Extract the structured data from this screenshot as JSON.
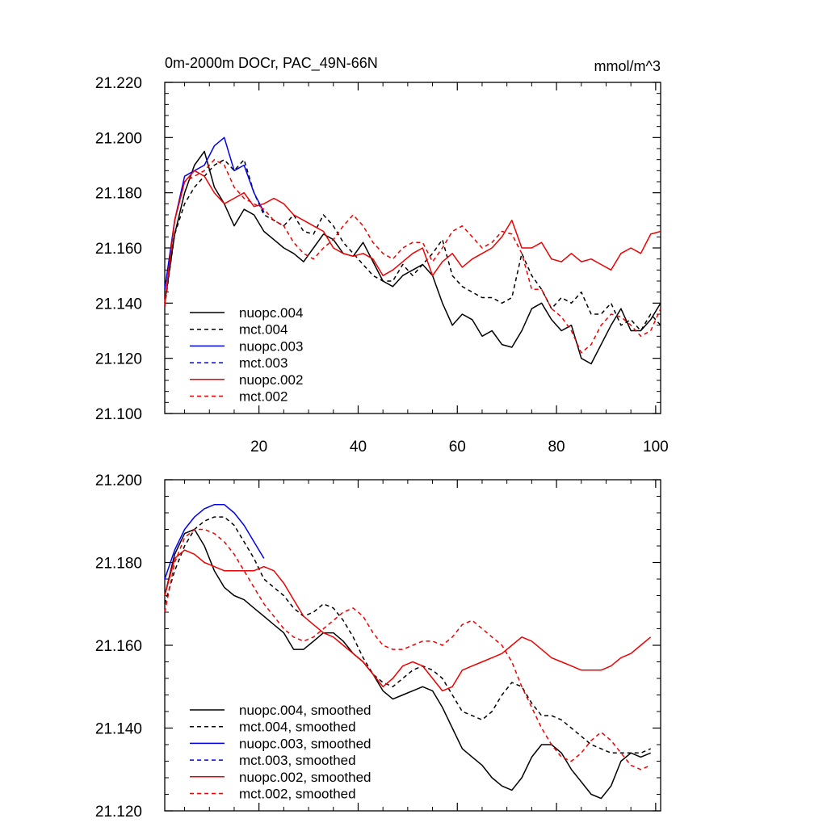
{
  "chart_data": [
    {
      "type": "line",
      "title": "0m-2000m DOCr, PAC_49N-66N",
      "units": "mmol/m^3",
      "xlim": [
        1,
        101
      ],
      "ylim": [
        21.1,
        21.22
      ],
      "xticks": [
        20,
        40,
        60,
        80,
        100
      ],
      "xtick_labels": [
        "20",
        "40",
        "60",
        "80",
        "100"
      ],
      "yticks": [
        21.1,
        21.12,
        21.14,
        21.16,
        21.18,
        21.2,
        21.22
      ],
      "ytick_labels": [
        "21.100",
        "21.120",
        "21.140",
        "21.160",
        "21.180",
        "21.200",
        "21.220"
      ],
      "legend_position": "bottom-left",
      "series": [
        {
          "name": "nuopc.004",
          "color": "#000000",
          "dash": "solid",
          "x": [
            1,
            3,
            5,
            7,
            9,
            11,
            13,
            15,
            17,
            19,
            21,
            23,
            25,
            27,
            29,
            31,
            33,
            35,
            37,
            39,
            41,
            43,
            45,
            47,
            49,
            51,
            53,
            55,
            57,
            59,
            61,
            63,
            65,
            67,
            69,
            71,
            73,
            75,
            77,
            79,
            81,
            83,
            85,
            87,
            89,
            91,
            93,
            95,
            97,
            99,
            101
          ],
          "values": [
            21.14,
            21.165,
            21.18,
            21.19,
            21.195,
            21.182,
            21.176,
            21.168,
            21.174,
            21.172,
            21.166,
            21.163,
            21.16,
            21.158,
            21.155,
            21.16,
            21.165,
            21.163,
            21.158,
            21.157,
            21.162,
            21.155,
            21.148,
            21.146,
            21.15,
            21.152,
            21.154,
            21.15,
            21.14,
            21.132,
            21.136,
            21.134,
            21.128,
            21.13,
            21.125,
            21.124,
            21.13,
            21.138,
            21.14,
            21.134,
            21.13,
            21.132,
            21.12,
            21.118,
            21.125,
            21.132,
            21.138,
            21.13,
            21.13,
            21.134,
            21.14
          ]
        },
        {
          "name": "mct.004",
          "color": "#000000",
          "dash": "dashed",
          "x": [
            1,
            3,
            5,
            7,
            9,
            11,
            13,
            15,
            17,
            19,
            21,
            23,
            25,
            27,
            29,
            31,
            33,
            35,
            37,
            39,
            41,
            43,
            45,
            47,
            49,
            51,
            53,
            55,
            57,
            59,
            61,
            63,
            65,
            67,
            69,
            71,
            73,
            75,
            77,
            79,
            81,
            83,
            85,
            87,
            89,
            91,
            93,
            95,
            97,
            99,
            101
          ],
          "values": [
            21.139,
            21.165,
            21.176,
            21.182,
            21.186,
            21.19,
            21.192,
            21.188,
            21.192,
            21.18,
            21.172,
            21.17,
            21.168,
            21.172,
            21.166,
            21.165,
            21.172,
            21.168,
            21.162,
            21.158,
            21.154,
            21.15,
            21.148,
            21.148,
            21.154,
            21.15,
            21.154,
            21.158,
            21.163,
            21.15,
            21.146,
            21.144,
            21.142,
            21.142,
            21.14,
            21.142,
            21.158,
            21.15,
            21.145,
            21.138,
            21.142,
            21.14,
            21.144,
            21.136,
            21.136,
            21.14,
            21.132,
            21.134,
            21.13,
            21.136,
            21.132
          ]
        },
        {
          "name": "nuopc.003",
          "color": "#0000ee",
          "dash": "solid",
          "x": [
            1,
            3,
            5,
            7,
            9,
            11,
            13,
            15,
            17,
            19,
            21
          ],
          "values": [
            21.145,
            21.17,
            21.186,
            21.188,
            21.19,
            21.197,
            21.2,
            21.188,
            21.19,
            21.18,
            21.173
          ]
        },
        {
          "name": "mct.003",
          "color": "#0000ee",
          "dash": "dashed",
          "x": [],
          "values": []
        },
        {
          "name": "nuopc.002",
          "color": "#ee0000",
          "dash": "solid",
          "x": [
            1,
            3,
            5,
            7,
            9,
            11,
            13,
            15,
            17,
            19,
            21,
            23,
            25,
            27,
            29,
            31,
            33,
            35,
            37,
            39,
            41,
            43,
            45,
            47,
            49,
            51,
            53,
            55,
            57,
            59,
            61,
            63,
            65,
            67,
            69,
            71,
            73,
            75,
            77,
            79,
            81,
            83,
            85,
            87,
            89,
            91,
            93,
            95,
            97,
            99,
            101
          ],
          "values": [
            21.14,
            21.17,
            21.184,
            21.188,
            21.186,
            21.18,
            21.176,
            21.178,
            21.18,
            21.175,
            21.176,
            21.178,
            21.176,
            21.172,
            21.17,
            21.168,
            21.166,
            21.16,
            21.158,
            21.157,
            21.158,
            21.156,
            21.15,
            21.152,
            21.155,
            21.158,
            21.16,
            21.15,
            21.155,
            21.158,
            21.153,
            21.156,
            21.158,
            21.16,
            21.164,
            21.17,
            21.16,
            21.16,
            21.162,
            21.156,
            21.155,
            21.158,
            21.155,
            21.156,
            21.154,
            21.152,
            21.158,
            21.16,
            21.158,
            21.165,
            21.166
          ]
        },
        {
          "name": "mct.002",
          "color": "#ee0000",
          "dash": "dashed",
          "x": [
            1,
            3,
            5,
            7,
            9,
            11,
            13,
            15,
            17,
            19,
            21,
            23,
            25,
            27,
            29,
            31,
            33,
            35,
            37,
            39,
            41,
            43,
            45,
            47,
            49,
            51,
            53,
            55,
            57,
            59,
            61,
            63,
            65,
            67,
            69,
            71,
            73,
            75,
            77,
            79,
            81,
            83,
            85,
            87,
            89,
            91,
            93,
            95,
            97,
            99,
            101
          ],
          "values": [
            21.139,
            21.17,
            21.184,
            21.186,
            21.188,
            21.192,
            21.19,
            21.182,
            21.178,
            21.176,
            21.174,
            21.17,
            21.168,
            21.162,
            21.158,
            21.156,
            21.16,
            21.163,
            21.168,
            21.172,
            21.168,
            21.162,
            21.158,
            21.156,
            21.16,
            21.162,
            21.162,
            21.155,
            21.16,
            21.166,
            21.168,
            21.164,
            21.16,
            21.162,
            21.166,
            21.165,
            21.158,
            21.145,
            21.145,
            21.138,
            21.135,
            21.13,
            21.122,
            21.125,
            21.132,
            21.136,
            21.135,
            21.132,
            21.128,
            21.13,
            21.138
          ]
        }
      ]
    },
    {
      "type": "line",
      "title": "",
      "xlim": [
        1,
        101
      ],
      "ylim": [
        21.12,
        21.2
      ],
      "xticks": [
        20,
        40,
        60,
        80,
        100
      ],
      "xtick_labels": [],
      "yticks": [
        21.12,
        21.14,
        21.16,
        21.18,
        21.2
      ],
      "ytick_labels": [
        "21.120",
        "21.140",
        "21.160",
        "21.180",
        "21.200"
      ],
      "legend_position": "bottom-left",
      "series": [
        {
          "name": "nuopc.004, smoothed",
          "color": "#000000",
          "dash": "solid",
          "x": [
            1,
            3,
            5,
            7,
            9,
            11,
            13,
            15,
            17,
            19,
            21,
            23,
            25,
            27,
            29,
            31,
            33,
            35,
            37,
            39,
            41,
            43,
            45,
            47,
            49,
            51,
            53,
            55,
            57,
            59,
            61,
            63,
            65,
            67,
            69,
            71,
            73,
            75,
            77,
            79,
            81,
            83,
            85,
            87,
            89,
            91,
            93,
            95,
            97,
            99
          ],
          "values": [
            21.172,
            21.182,
            21.187,
            21.188,
            21.184,
            21.178,
            21.174,
            21.172,
            21.171,
            21.169,
            21.167,
            21.165,
            21.163,
            21.159,
            21.159,
            21.161,
            21.163,
            21.163,
            21.161,
            21.158,
            21.156,
            21.153,
            21.149,
            21.147,
            21.148,
            21.149,
            21.15,
            21.149,
            21.145,
            21.14,
            21.135,
            21.133,
            21.131,
            21.128,
            21.126,
            21.125,
            21.128,
            21.133,
            21.136,
            21.136,
            21.134,
            21.13,
            21.127,
            21.124,
            21.123,
            21.126,
            21.132,
            21.134,
            21.133,
            21.134
          ]
        },
        {
          "name": "mct.004, smoothed",
          "color": "#000000",
          "dash": "dashed",
          "x": [
            1,
            3,
            5,
            7,
            9,
            11,
            13,
            15,
            17,
            19,
            21,
            23,
            25,
            27,
            29,
            31,
            33,
            35,
            37,
            39,
            41,
            43,
            45,
            47,
            49,
            51,
            53,
            55,
            57,
            59,
            61,
            63,
            65,
            67,
            69,
            71,
            73,
            75,
            77,
            79,
            81,
            83,
            85,
            87,
            89,
            91,
            93,
            95,
            97,
            99
          ],
          "values": [
            21.17,
            21.178,
            21.184,
            21.188,
            21.19,
            21.191,
            21.191,
            21.189,
            21.185,
            21.181,
            21.176,
            21.174,
            21.172,
            21.169,
            21.167,
            21.168,
            21.17,
            21.169,
            21.166,
            21.162,
            21.157,
            21.153,
            21.151,
            21.15,
            21.152,
            21.154,
            21.155,
            21.154,
            21.152,
            21.148,
            21.144,
            21.143,
            21.142,
            21.144,
            21.148,
            21.151,
            21.15,
            21.146,
            21.143,
            21.143,
            21.142,
            21.14,
            21.138,
            21.136,
            21.135,
            21.134,
            21.134,
            21.134,
            21.134,
            21.135
          ]
        },
        {
          "name": "nuopc.003, smoothed",
          "color": "#0000ee",
          "dash": "solid",
          "x": [
            1,
            3,
            5,
            7,
            9,
            11,
            13,
            15,
            17,
            19,
            21
          ],
          "values": [
            21.176,
            21.183,
            21.188,
            21.191,
            21.193,
            21.194,
            21.194,
            21.192,
            21.189,
            21.185,
            21.181
          ]
        },
        {
          "name": "mct.003, smoothed",
          "color": "#0000ee",
          "dash": "dashed",
          "x": [],
          "values": []
        },
        {
          "name": "nuopc.002, smoothed",
          "color": "#ee0000",
          "dash": "solid",
          "x": [
            1,
            3,
            5,
            7,
            9,
            11,
            13,
            15,
            17,
            19,
            21,
            23,
            25,
            27,
            29,
            31,
            33,
            35,
            37,
            39,
            41,
            43,
            45,
            47,
            49,
            51,
            53,
            55,
            57,
            59,
            61,
            63,
            65,
            67,
            69,
            71,
            73,
            75,
            77,
            79,
            81,
            83,
            85,
            87,
            89,
            91,
            93,
            95,
            97,
            99
          ],
          "values": [
            21.172,
            21.181,
            21.183,
            21.182,
            21.18,
            21.179,
            21.178,
            21.178,
            21.178,
            21.178,
            21.179,
            21.178,
            21.175,
            21.171,
            21.167,
            21.165,
            21.163,
            21.162,
            21.16,
            21.158,
            21.156,
            21.153,
            21.15,
            21.152,
            21.155,
            21.156,
            21.155,
            21.152,
            21.149,
            21.15,
            21.154,
            21.155,
            21.156,
            21.157,
            21.158,
            21.16,
            21.162,
            21.161,
            21.159,
            21.157,
            21.156,
            21.155,
            21.154,
            21.154,
            21.154,
            21.155,
            21.157,
            21.158,
            21.16,
            21.162
          ]
        },
        {
          "name": "mct.002, smoothed",
          "color": "#ee0000",
          "dash": "dashed",
          "x": [
            1,
            3,
            5,
            7,
            9,
            11,
            13,
            15,
            17,
            19,
            21,
            23,
            25,
            27,
            29,
            31,
            33,
            35,
            37,
            39,
            41,
            43,
            45,
            47,
            49,
            51,
            53,
            55,
            57,
            59,
            61,
            63,
            65,
            67,
            69,
            71,
            73,
            75,
            77,
            79,
            81,
            83,
            85,
            87,
            89,
            91,
            93,
            95,
            97,
            99
          ],
          "values": [
            21.168,
            21.18,
            21.186,
            21.188,
            21.188,
            21.187,
            21.185,
            21.182,
            21.178,
            21.174,
            21.17,
            21.167,
            21.164,
            21.162,
            21.161,
            21.162,
            21.164,
            21.166,
            21.168,
            21.169,
            21.167,
            21.163,
            21.16,
            21.159,
            21.159,
            21.16,
            21.161,
            21.161,
            21.16,
            21.162,
            21.165,
            21.166,
            21.164,
            21.162,
            21.16,
            21.156,
            21.15,
            21.145,
            21.14,
            21.136,
            21.133,
            21.132,
            21.134,
            21.137,
            21.139,
            21.137,
            21.134,
            21.131,
            21.13,
            21.131
          ]
        }
      ]
    }
  ]
}
